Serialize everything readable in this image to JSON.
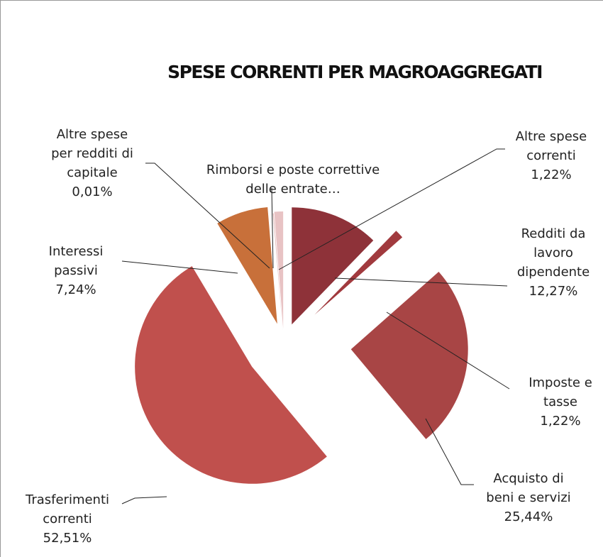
{
  "chart_data": {
    "type": "pie",
    "title": "SPESE CORRENTI PER MAGROAGGREGATI",
    "categories": [
      "Redditi da lavoro dipendente",
      "Imposte e tasse",
      "Acquisto di beni e servizi",
      "Trasferimenti correnti",
      "Interessi passivi",
      "Altre spese per redditi di capitale",
      "Rimborsi e poste correttive delle entrate…",
      "Altre spese correnti"
    ],
    "values": [
      12.27,
      1.22,
      25.44,
      52.51,
      7.24,
      0.01,
      0.09,
      1.22
    ],
    "value_labels": [
      "12,27%",
      "1,22%",
      "25,44%",
      "52,51%",
      "7,24%",
      "0,01%",
      null,
      "1,22%"
    ],
    "colors": [
      "#8e3239",
      "#a13a3e",
      "#a84545",
      "#c0504d",
      "#c8703a",
      "#d99694",
      "#e3b3b3",
      "#e8c3c4"
    ]
  }
}
